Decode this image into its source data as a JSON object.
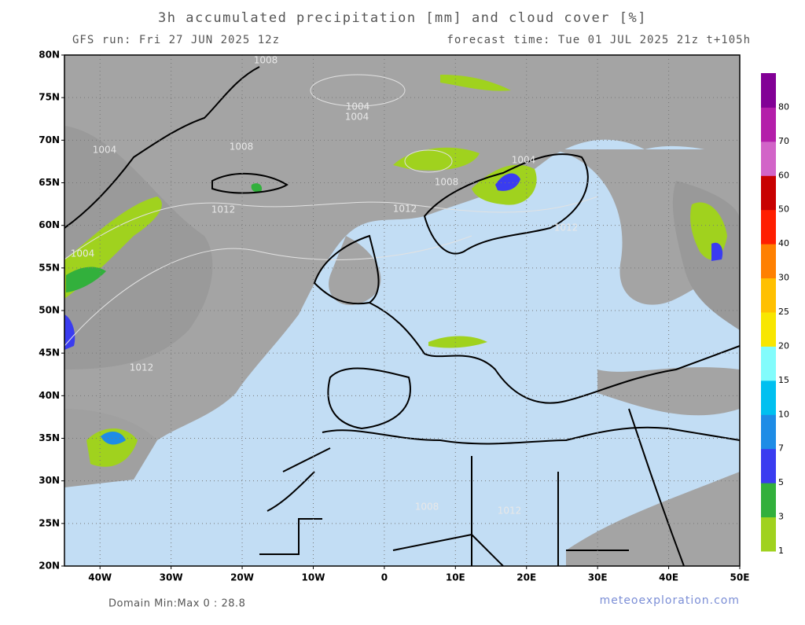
{
  "header": {
    "title": "3h accumulated precipitation [mm] and cloud cover [%]",
    "run": "GFS run: Fri 27 JUN 2025 12z",
    "forecast": "forecast time: Tue 01 JUL 2025 21z  t+105h"
  },
  "map": {
    "lat_labels": [
      "80N",
      "75N",
      "70N",
      "65N",
      "60N",
      "55N",
      "50N",
      "45N",
      "40N",
      "35N",
      "30N",
      "25N",
      "20N"
    ],
    "lon_labels": [
      "40W",
      "30W",
      "20W",
      "10W",
      "0",
      "10E",
      "20E",
      "30E",
      "40E",
      "50E"
    ],
    "isobar_labels": [
      "1008",
      "1004",
      "1004",
      "1008",
      "1004",
      "1012",
      "1004",
      "1008",
      "1012",
      "1004",
      "1012",
      "1012",
      "1008",
      "1012"
    ]
  },
  "colorbar": {
    "levels": [
      "1",
      "3",
      "5",
      "7",
      "10",
      "15",
      "20",
      "25",
      "30",
      "40",
      "50",
      "60",
      "70",
      "80"
    ],
    "colors": [
      "#a0d21e",
      "#32b03c",
      "#3a3cf0",
      "#1e8ce6",
      "#00c0f0",
      "#82fcfc",
      "#f8e600",
      "#ffc000",
      "#ff8000",
      "#ff1e00",
      "#c80000",
      "#d264c8",
      "#b41eaa",
      "#820096"
    ]
  },
  "footer": {
    "minmax": "Domain Min:Max 0 : 28.8",
    "site": "meteoexploration.com"
  }
}
